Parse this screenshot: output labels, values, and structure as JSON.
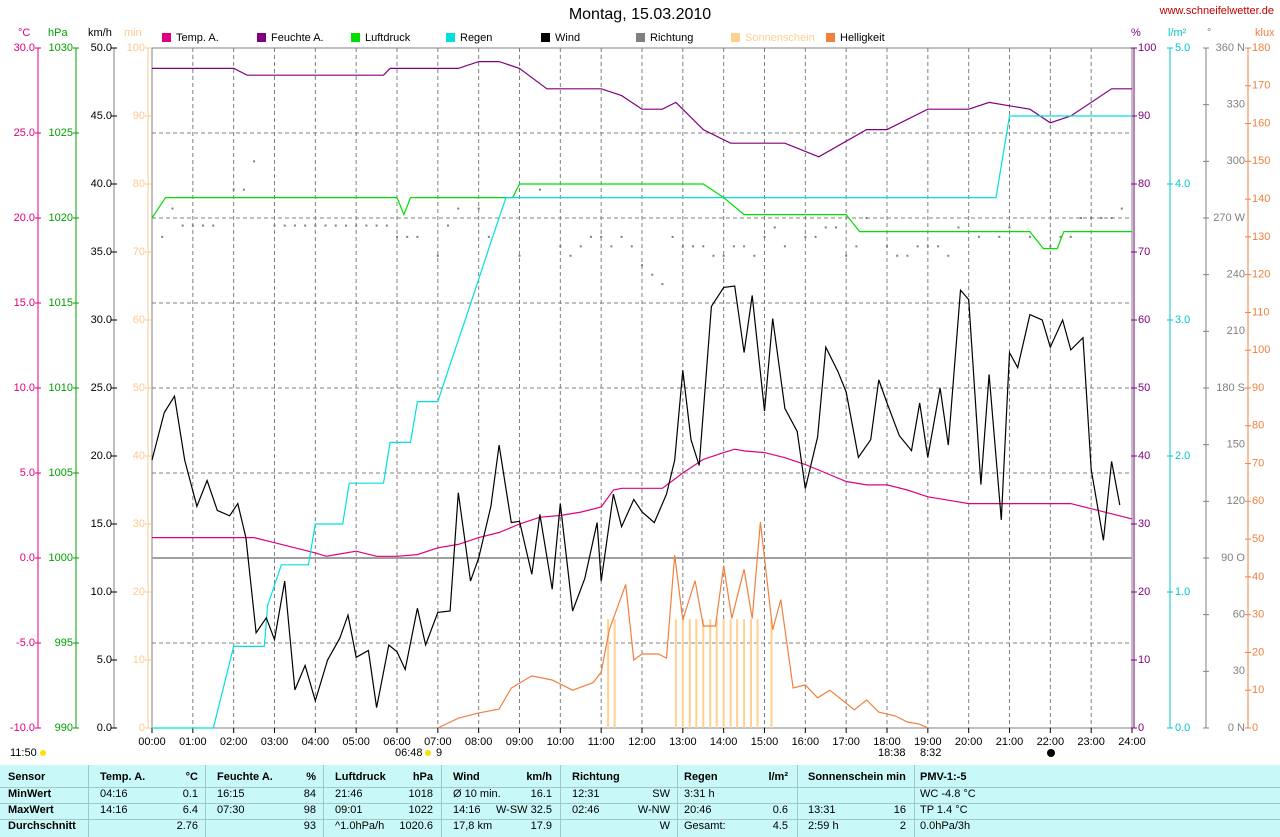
{
  "chart_data": {
    "type": "line",
    "title": "Montag, 15.03.2010",
    "source": "www.schneifelwetter.de",
    "xlim": [
      0,
      24
    ],
    "xticks": [
      {
        "value": 0,
        "label": "00:00"
      },
      {
        "value": 1,
        "label": "01:00"
      },
      {
        "value": 2,
        "label": "02:00"
      },
      {
        "value": 3,
        "label": "03:00"
      },
      {
        "value": 4,
        "label": "04:00"
      },
      {
        "value": 5,
        "label": "05:00"
      },
      {
        "value": 6,
        "label": "06:00"
      },
      {
        "value": 7,
        "label": "07:00"
      },
      {
        "value": 8,
        "label": "08:00"
      },
      {
        "value": 9,
        "label": "09:00"
      },
      {
        "value": 10,
        "label": "10:00"
      },
      {
        "value": 11,
        "label": "11:00"
      },
      {
        "value": 12,
        "label": "12:00"
      },
      {
        "value": 13,
        "label": "13:00"
      },
      {
        "value": 14,
        "label": "14:00"
      },
      {
        "value": 15,
        "label": "15:00"
      },
      {
        "value": 16,
        "label": "16:00"
      },
      {
        "value": 17,
        "label": "17:00"
      },
      {
        "value": 18,
        "label": "18:00"
      },
      {
        "value": 19,
        "label": "19:00"
      },
      {
        "value": 20,
        "label": "20:00"
      },
      {
        "value": 21,
        "label": "21:00"
      },
      {
        "value": 22,
        "label": "22:00"
      },
      {
        "value": 23,
        "label": "23:00"
      },
      {
        "value": 24,
        "label": "24:00"
      }
    ],
    "grid": true,
    "axes": [
      {
        "unit": "°C",
        "color": "#e0007f",
        "lim": [
          -10,
          30
        ],
        "ticks": [
          {
            "value": -10,
            "label": "-10.0"
          },
          {
            "value": -5,
            "label": "-5.0"
          },
          {
            "value": 0,
            "label": "0.0"
          },
          {
            "value": 5,
            "label": "5.0"
          },
          {
            "value": 10,
            "label": "10.0"
          },
          {
            "value": 15,
            "label": "15.0"
          },
          {
            "value": 20,
            "label": "20.0"
          },
          {
            "value": 25,
            "label": "25.0"
          },
          {
            "value": 30,
            "label": "30.0"
          }
        ]
      },
      {
        "unit": "hPa",
        "color": "#00a000",
        "lim": [
          990,
          1030
        ],
        "ticks": [
          990,
          995,
          1000,
          1005,
          1010,
          1015,
          1020,
          1025,
          1030
        ]
      },
      {
        "unit": "km/h",
        "color": "#000000",
        "lim": [
          0,
          50
        ],
        "ticks": [
          {
            "value": 0,
            "label": "0.0"
          },
          {
            "value": 5,
            "label": "5.0"
          },
          {
            "value": 10,
            "label": "10.0"
          },
          {
            "value": 15,
            "label": "15.0"
          },
          {
            "value": 20,
            "label": "20.0"
          },
          {
            "value": 25,
            "label": "25.0"
          },
          {
            "value": 30,
            "label": "30.0"
          },
          {
            "value": 35,
            "label": "35.0"
          },
          {
            "value": 40,
            "label": "40.0"
          },
          {
            "value": 45,
            "label": "45.0"
          },
          {
            "value": 50,
            "label": "50.0"
          }
        ]
      },
      {
        "unit": "min",
        "color": "#ffc890",
        "lim": [
          0,
          100
        ],
        "ticks": [
          0,
          10,
          20,
          30,
          40,
          50,
          60,
          70,
          80,
          90,
          100
        ]
      },
      {
        "unit": "%",
        "color": "#800080",
        "lim": [
          0,
          100
        ],
        "ticks": [
          0,
          10,
          20,
          30,
          40,
          50,
          60,
          70,
          80,
          90,
          100
        ]
      },
      {
        "unit": "l/m²",
        "color": "#00c8c8",
        "lim": [
          0,
          5
        ],
        "ticks": [
          {
            "value": 0,
            "label": "0.0"
          },
          {
            "value": 1,
            "label": "1.0"
          },
          {
            "value": 2,
            "label": "2.0"
          },
          {
            "value": 3,
            "label": "3.0"
          },
          {
            "value": 4,
            "label": "4.0"
          },
          {
            "value": 5,
            "label": "5.0"
          }
        ]
      },
      {
        "unit": "°",
        "color": "#808080",
        "lim": [
          0,
          360
        ],
        "ticks": [
          {
            "value": 0,
            "label": "0 N"
          },
          30,
          60,
          {
            "value": 90,
            "label": "90 O"
          },
          120,
          150,
          {
            "value": 180,
            "label": "180 S"
          },
          210,
          240,
          {
            "value": 270,
            "label": "270 W"
          },
          300,
          330,
          {
            "value": 360,
            "label": "360 N"
          }
        ]
      },
      {
        "unit": "klux",
        "color": "#f08040",
        "lim": [
          0,
          180
        ],
        "ticks": [
          0,
          10,
          20,
          30,
          40,
          50,
          60,
          70,
          80,
          90,
          100,
          110,
          120,
          130,
          140,
          150,
          160,
          170,
          180
        ]
      }
    ],
    "series": [
      {
        "name": "Temp. A.",
        "color": "#e0007f",
        "axis": 0,
        "style": "line",
        "x": [
          0,
          2.5,
          3,
          3.5,
          4,
          4.27,
          4.5,
          5,
          5.5,
          6,
          6.5,
          7,
          7.5,
          8,
          8.5,
          9,
          9.5,
          10,
          10.5,
          11,
          11.3,
          11.5,
          12,
          12.5,
          13,
          13.5,
          14,
          14.27,
          14.5,
          15,
          15.5,
          16,
          16.5,
          17,
          17.5,
          18,
          18.5,
          19,
          19.5,
          20,
          21,
          22,
          22.5,
          23,
          23.5,
          24
        ],
        "values": [
          1.2,
          1.2,
          0.9,
          0.6,
          0.3,
          0.1,
          0.2,
          0.4,
          0.1,
          0.1,
          0.2,
          0.6,
          0.8,
          1.2,
          1.5,
          2.0,
          2.4,
          2.5,
          2.7,
          3.0,
          4.0,
          4.1,
          4.1,
          4.1,
          5.0,
          5.8,
          6.2,
          6.4,
          6.3,
          6.2,
          5.9,
          5.5,
          5.0,
          4.5,
          4.3,
          4.3,
          4.0,
          3.6,
          3.4,
          3.2,
          3.2,
          3.2,
          3.2,
          2.9,
          2.6,
          2.3
        ]
      },
      {
        "name": "Feuchte A.",
        "color": "#800080",
        "axis": 4,
        "style": "line",
        "x": [
          0,
          2,
          2.33,
          5.67,
          5.83,
          7.5,
          8,
          8.5,
          9,
          9.67,
          11,
          11.5,
          12,
          12.5,
          12.83,
          13.5,
          14.17,
          15.5,
          16.33,
          17.5,
          18,
          19,
          20,
          20.5,
          21.5,
          22,
          22.5,
          23.5,
          24
        ],
        "values": [
          97,
          97,
          96,
          96,
          97,
          97,
          98,
          98,
          97,
          94,
          94,
          93,
          91,
          91,
          92,
          88,
          86,
          86,
          84,
          88,
          88,
          91,
          91,
          92,
          91,
          89,
          90,
          94,
          94
        ]
      },
      {
        "name": "Luftdruck",
        "color": "#00e000",
        "axis": 1,
        "style": "line",
        "x": [
          0,
          0.33,
          6,
          6.17,
          6.33,
          8.83,
          9,
          13.5,
          14,
          14.5,
          17,
          17.33,
          21.5,
          21.83,
          22.17,
          22.33,
          24
        ],
        "values": [
          1020,
          1021.2,
          1021.2,
          1020.2,
          1021.2,
          1021.2,
          1022,
          1022,
          1021.2,
          1020.2,
          1020.2,
          1019.2,
          1019.2,
          1018.2,
          1018.2,
          1019.2,
          1019.2
        ]
      },
      {
        "name": "Regen",
        "color": "#00e0e0",
        "axis": 5,
        "style": "line",
        "x": [
          0,
          1.5,
          2,
          2.75,
          2.83,
          3.17,
          3.83,
          4,
          4.67,
          4.83,
          5.67,
          5.83,
          6.33,
          6.5,
          7,
          7.33,
          7.67,
          8,
          8.33,
          8.67,
          20.67,
          21,
          24
        ],
        "values": [
          0,
          0,
          0.6,
          0.6,
          0.9,
          1.2,
          1.2,
          1.5,
          1.5,
          1.8,
          1.8,
          2.1,
          2.1,
          2.4,
          2.4,
          2.7,
          3.0,
          3.3,
          3.6,
          3.9,
          3.9,
          4.5,
          4.5
        ]
      },
      {
        "name": "Wind",
        "color": "#000000",
        "axis": 2,
        "style": "line",
        "x": [
          0,
          0.3,
          0.55,
          0.8,
          1.1,
          1.35,
          1.6,
          1.9,
          2.1,
          2.3,
          2.55,
          2.8,
          3,
          3.25,
          3.5,
          3.75,
          4,
          4.3,
          4.6,
          4.8,
          5,
          5.3,
          5.5,
          5.8,
          6,
          6.2,
          6.5,
          6.7,
          7,
          7.3,
          7.5,
          7.8,
          8,
          8.3,
          8.5,
          8.8,
          9,
          9.3,
          9.5,
          9.8,
          10,
          10.3,
          10.6,
          10.9,
          11,
          11.3,
          11.5,
          11.8,
          12,
          12.3,
          12.6,
          12.8,
          13,
          13.2,
          13.4,
          13.7,
          14,
          14.27,
          14.5,
          14.7,
          15,
          15.2,
          15.5,
          15.8,
          16,
          16.3,
          16.5,
          16.8,
          17,
          17.3,
          17.6,
          17.8,
          18,
          18.3,
          18.6,
          18.8,
          19,
          19.3,
          19.5,
          19.8,
          20,
          20.3,
          20.5,
          20.8,
          21,
          21.2,
          21.5,
          21.8,
          22,
          22.3,
          22.5,
          22.8,
          23,
          23.3,
          23.5,
          23.7
        ],
        "values": [
          19.7,
          23.2,
          24.4,
          19.7,
          16.3,
          18.2,
          16.0,
          15.6,
          16.5,
          14.0,
          7.0,
          8.1,
          6.5,
          10.8,
          2.8,
          4.6,
          2.0,
          5.0,
          6.6,
          8.3,
          5.2,
          5.7,
          1.5,
          6.1,
          5.6,
          4.3,
          8.8,
          6.1,
          8.5,
          8.6,
          17.3,
          10.8,
          12.5,
          16.3,
          20.8,
          15.1,
          15.2,
          11.3,
          15.7,
          10.2,
          16.5,
          8.6,
          11.0,
          15.1,
          10.8,
          17.2,
          14.8,
          16.8,
          15.9,
          15.1,
          17.2,
          19.7,
          26.3,
          21.2,
          19.3,
          31.0,
          32.4,
          32.5,
          27.6,
          31.8,
          23.3,
          30.1,
          23.5,
          21.8,
          17.6,
          21.4,
          28.0,
          26.2,
          24.7,
          19.9,
          21.2,
          25.6,
          23.9,
          21.5,
          20.4,
          23.9,
          19.9,
          25.0,
          20.8,
          32.2,
          31.5,
          17.9,
          26.0,
          15.3,
          27.6,
          26.5,
          30.4,
          30.0,
          28.0,
          30.0,
          27.8,
          28.7,
          19.0,
          13.8,
          19.6,
          16.4
        ]
      },
      {
        "name": "Richtung",
        "color": "#808080",
        "axis": 6,
        "style": "dots",
        "x": [
          0.25,
          0.5,
          0.75,
          1,
          1.25,
          1.5,
          2,
          2.25,
          2.5,
          3,
          3.25,
          3.5,
          3.75,
          4,
          4.25,
          4.5,
          4.75,
          5,
          5.25,
          5.5,
          5.75,
          6,
          6.25,
          6.5,
          7,
          7.25,
          7.5,
          8,
          8.25,
          9,
          9.5,
          10,
          10.25,
          10.5,
          10.75,
          11,
          11.25,
          11.5,
          11.75,
          12,
          12.25,
          12.5,
          12.75,
          13,
          13.25,
          13.5,
          13.75,
          14,
          14.25,
          14.5,
          14.75,
          15,
          15.25,
          15.5,
          16,
          16.25,
          16.5,
          16.75,
          17,
          17.25,
          17.5,
          18,
          18.25,
          18.5,
          18.75,
          19,
          19.25,
          19.5,
          19.75,
          20.25,
          20.75,
          21,
          21.5,
          22,
          22.25,
          22.5,
          22.75,
          23,
          23.25,
          23.5,
          23.75
        ],
        "values": [
          260,
          275,
          266,
          266,
          266,
          266,
          285,
          285,
          300,
          266,
          266,
          266,
          266,
          266,
          266,
          266,
          266,
          266,
          266,
          266,
          266,
          260,
          260,
          260,
          250,
          266,
          275,
          275,
          260,
          250,
          285,
          255,
          250,
          255,
          260,
          260,
          255,
          260,
          255,
          245,
          240,
          235,
          260,
          255,
          255,
          255,
          250,
          250,
          255,
          255,
          250,
          260,
          265,
          255,
          260,
          260,
          265,
          265,
          250,
          255,
          270,
          255,
          250,
          250,
          255,
          255,
          255,
          250,
          265,
          260,
          260,
          265,
          260,
          255,
          260,
          260,
          270,
          270,
          270,
          270,
          275
        ]
      },
      {
        "name": "Sonnenschein",
        "color": "#ffd090",
        "axis": 3,
        "style": "bars",
        "x": [
          11.17,
          11.33,
          12.83,
          13,
          13.17,
          13.33,
          13.5,
          13.67,
          13.83,
          14,
          14.17,
          14.33,
          14.5,
          14.67,
          14.83,
          15.17
        ],
        "values": [
          16,
          16,
          16,
          16,
          16,
          16,
          16,
          16,
          16,
          16,
          16,
          16,
          16,
          16,
          16,
          16
        ]
      },
      {
        "name": "Helligkeit",
        "color": "#f08040",
        "axis": 7,
        "style": "line",
        "x": [
          7,
          7.5,
          8,
          8.5,
          8.8,
          9.3,
          9.8,
          10.3,
          10.8,
          11,
          11.2,
          11.6,
          11.8,
          12,
          12.4,
          12.6,
          12.8,
          13,
          13.3,
          13.5,
          13.8,
          14,
          14.2,
          14.5,
          14.7,
          14.9,
          15.2,
          15.4,
          15.7,
          16,
          16.3,
          16.6,
          16.9,
          17.2,
          17.5,
          17.8,
          18.2,
          18.5,
          18.8,
          19
        ],
        "values": [
          0,
          2.6,
          4,
          5,
          10.6,
          13.8,
          12.7,
          10,
          12,
          14.8,
          26,
          38,
          18,
          19.6,
          19.6,
          18.5,
          45.8,
          28.6,
          39,
          27,
          27,
          43,
          29,
          42,
          29,
          54.5,
          26,
          34,
          10.6,
          11.4,
          8,
          10,
          7.4,
          4.8,
          7.4,
          4.2,
          3.2,
          1.6,
          1,
          0
        ]
      }
    ],
    "annotations": [
      "06:48",
      "9",
      "18:38",
      "8:32"
    ],
    "time": "11:50"
  },
  "table": {
    "header": [
      "Sensor",
      "Temp. A.",
      "°C",
      "Feuchte A.",
      "%",
      "Luftdruck",
      "hPa",
      "Wind",
      "km/h",
      "Richtung",
      null,
      "Regen",
      "l/m²",
      "Sonnenschein min",
      null,
      "PMV-1:-5"
    ],
    "rows": [
      [
        "MinWert",
        "04:16",
        "0.1",
        "16:15",
        "84",
        "21:46",
        "1018",
        "Ø 10 min.",
        "16.1",
        "12:31",
        "SW",
        "3:31 h",
        null,
        null,
        null,
        "WC -4.8 °C"
      ],
      [
        "MaxWert",
        "14:16",
        "6.4",
        "07:30",
        "98",
        "09:01",
        "1022",
        "14:16",
        "W-SW 32.5",
        "02:46",
        "W-NW",
        "20:46",
        "0.6",
        "13:31",
        "16",
        "TP 1.4 °C"
      ],
      [
        "Durchschnitt",
        null,
        "2.76",
        null,
        "93",
        "^1.0hPa/h",
        "1020.6",
        "17,8 km",
        "17.9",
        null,
        "W",
        "Gesamt:",
        "4.5",
        "2:59 h",
        "2",
        "0.0hPa/3h"
      ]
    ]
  }
}
